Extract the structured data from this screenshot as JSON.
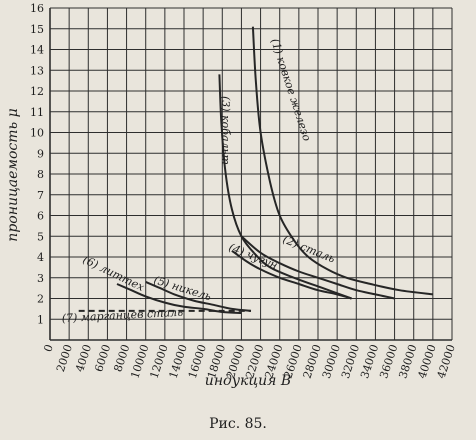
{
  "chart_data": {
    "type": "line",
    "xlabel": "индукция B",
    "ylabel": "проницаемость μ",
    "caption": "Рис. 85.",
    "xlim": [
      0,
      42000
    ],
    "ylim": [
      0,
      16
    ],
    "x_tick_labels": [
      "0",
      "2000",
      "4000",
      "6000",
      "8000",
      "10000",
      "12000",
      "14000",
      "16000",
      "18000",
      "20000",
      "22000",
      "24000",
      "26000",
      "28000",
      "30000",
      "32000",
      "34000",
      "36000",
      "38000",
      "40000",
      "42000"
    ],
    "y_tick_labels": [
      "1",
      "2",
      "3",
      "4",
      "5",
      "6",
      "7",
      "8",
      "9",
      "10",
      "11",
      "12",
      "13",
      "14",
      "15",
      "16"
    ],
    "grid": true,
    "series": [
      {
        "name": "(1) ковкое железо",
        "dashed": false,
        "x": [
          21200,
          21500,
          22000,
          23000,
          24000,
          25500,
          27000,
          29000,
          31000,
          33500,
          36500,
          40000
        ],
        "y": [
          15.1,
          12.5,
          10.0,
          7.6,
          6.0,
          4.8,
          4.0,
          3.4,
          3.0,
          2.7,
          2.4,
          2.2
        ]
      },
      {
        "name": "(2) сталь",
        "dashed": false,
        "x": [
          20000,
          22000,
          24000,
          26000,
          28000,
          30000,
          32000,
          34000,
          36000
        ],
        "y": [
          5.0,
          4.2,
          3.7,
          3.3,
          3.0,
          2.7,
          2.4,
          2.2,
          2.0
        ]
      },
      {
        "name": "(3) кобальт",
        "dashed": false,
        "x": [
          17700,
          17900,
          18300,
          19000,
          20000,
          21500,
          23000,
          25500,
          28500,
          31500
        ],
        "y": [
          12.8,
          10.5,
          8.2,
          6.3,
          5.0,
          4.1,
          3.5,
          3.0,
          2.5,
          2.0
        ]
      },
      {
        "name": "(4) чугун",
        "dashed": false,
        "x": [
          19000,
          20500,
          22000,
          24000,
          26000,
          28000,
          30000,
          31500
        ],
        "y": [
          4.3,
          3.8,
          3.4,
          3.0,
          2.7,
          2.4,
          2.2,
          2.0
        ]
      },
      {
        "name": "(5) никель",
        "dashed": false,
        "x": [
          10000,
          11500,
          13000,
          15000,
          17000,
          19000,
          21000
        ],
        "y": [
          2.8,
          2.5,
          2.2,
          1.9,
          1.7,
          1.5,
          1.4
        ]
      },
      {
        "name": "(6) литтех",
        "dashed": false,
        "x": [
          7000,
          8500,
          10000,
          12000,
          14000,
          16000,
          18000,
          20000
        ],
        "y": [
          2.7,
          2.4,
          2.1,
          1.8,
          1.6,
          1.5,
          1.35,
          1.3
        ]
      },
      {
        "name": "(7) марганцев сталь",
        "dashed": true,
        "x": [
          3000,
          6000,
          9000,
          12000,
          15000,
          18000,
          21000
        ],
        "y": [
          1.4,
          1.4,
          1.4,
          1.4,
          1.4,
          1.4,
          1.4
        ]
      }
    ]
  },
  "style": {
    "line_color": "#262626",
    "grid_color": "#2e2e2e",
    "background": "#e9e5dc"
  }
}
